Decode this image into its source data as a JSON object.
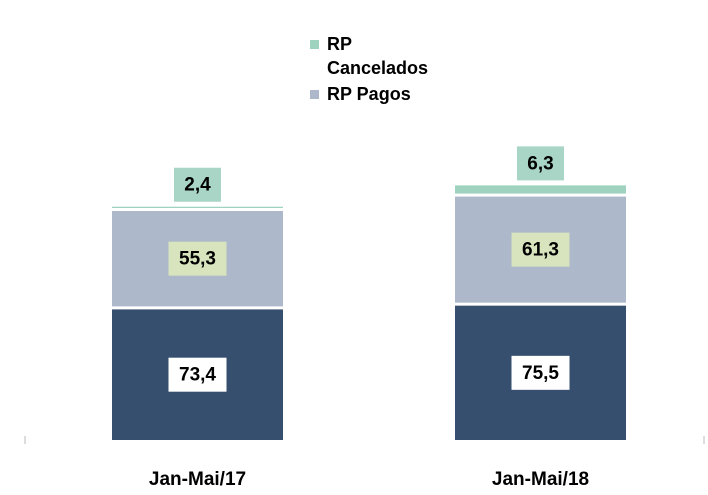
{
  "chart_data": {
    "type": "stacked_bar",
    "categories": [
      "Jan-Mai/17",
      "Jan-Mai/18"
    ],
    "series": [
      {
        "color": "#364f6e",
        "values": [
          73.4,
          75.5
        ],
        "value_labels": [
          "73,4",
          "75,5"
        ]
      },
      {
        "name": "RP Pagos",
        "color": "#adb9ca",
        "values": [
          55.3,
          61.3
        ],
        "value_labels": [
          "55,3",
          "61,3"
        ]
      },
      {
        "name": "RP Cancelados",
        "color": "#9fd3c0",
        "values": [
          2.4,
          6.3
        ],
        "value_labels": [
          "2,4",
          "6,3"
        ]
      }
    ],
    "ylim": [
      0,
      145
    ]
  }
}
